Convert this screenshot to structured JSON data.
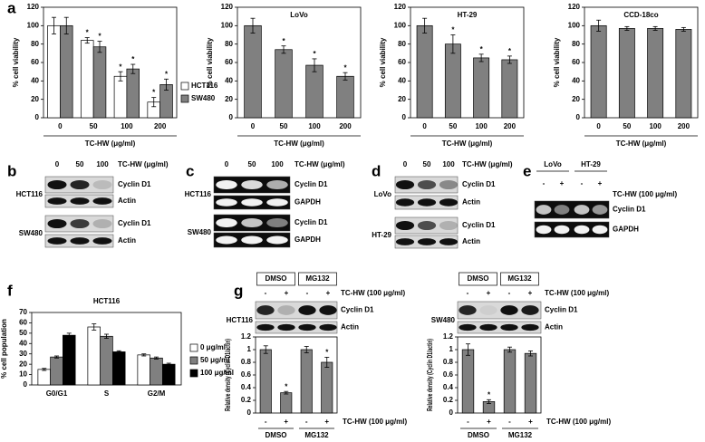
{
  "chart_data": [
    {
      "type": "bar",
      "ylabel": "% cell viability",
      "xlabel": "TC-HW (μg/ml)",
      "categories": [
        "0",
        "50",
        "100",
        "200"
      ],
      "series": [
        {
          "name": "HCT116",
          "color": "#ffffff",
          "values": [
            100,
            84,
            45,
            17
          ],
          "errors": [
            9,
            3,
            5,
            5
          ],
          "stars": [
            null,
            "*",
            "*",
            "*"
          ]
        },
        {
          "name": "SW480",
          "color": "#808080",
          "values": [
            100,
            77,
            53,
            36
          ],
          "errors": [
            9,
            6,
            5,
            6
          ],
          "stars": [
            null,
            "*",
            "*",
            "*"
          ]
        }
      ],
      "ylim": [
        0,
        120
      ],
      "yticks": [
        0,
        20,
        40,
        60,
        80,
        100,
        120
      ]
    },
    {
      "type": "bar",
      "title": "LoVo",
      "ylabel": "% cell viability",
      "xlabel": "TC-HW (μg/ml)",
      "categories": [
        "0",
        "50",
        "100",
        "200"
      ],
      "values": [
        100,
        74,
        57,
        45
      ],
      "errors": [
        8,
        4,
        7,
        4
      ],
      "stars": [
        null,
        "*",
        "*",
        "*"
      ],
      "color": "#808080",
      "ylim": [
        0,
        120
      ],
      "yticks": [
        0,
        20,
        40,
        60,
        80,
        100,
        120
      ]
    },
    {
      "type": "bar",
      "title": "HT-29",
      "ylabel": "% cell viability",
      "xlabel": "TC-HW (μg/ml)",
      "categories": [
        "0",
        "50",
        "100",
        "200"
      ],
      "values": [
        100,
        80,
        65,
        63
      ],
      "errors": [
        8,
        10,
        4,
        4
      ],
      "stars": [
        null,
        "*",
        "*",
        "*"
      ],
      "color": "#808080",
      "ylim": [
        0,
        120
      ],
      "yticks": [
        0,
        20,
        40,
        60,
        80,
        100,
        120
      ]
    },
    {
      "type": "bar",
      "title": "CCD-18co",
      "ylabel": "% cell viability",
      "xlabel": "TC-HW (μg/ml)",
      "categories": [
        "0",
        "50",
        "100",
        "200"
      ],
      "values": [
        100,
        97,
        97,
        96
      ],
      "errors": [
        6,
        2,
        2,
        2
      ],
      "color": "#808080",
      "ylim": [
        0,
        120
      ],
      "yticks": [
        0,
        20,
        40,
        60,
        80,
        100,
        120
      ]
    },
    {
      "type": "bar",
      "title": "HCT116",
      "ylabel": "% cell population",
      "categories": [
        "G0/G1",
        "S",
        "G2/M"
      ],
      "series": [
        {
          "name": "0 μg/ml",
          "color": "#ffffff",
          "values": [
            15,
            56,
            29
          ],
          "errors": [
            1,
            3,
            1
          ]
        },
        {
          "name": "50 μg/ml",
          "color": "#808080",
          "values": [
            27,
            47,
            26
          ],
          "errors": [
            1,
            2,
            1
          ]
        },
        {
          "name": "100 μg/ml",
          "color": "#000000",
          "values": [
            48,
            32,
            20
          ],
          "errors": [
            2,
            1,
            1
          ]
        }
      ],
      "ylim": [
        0,
        70
      ],
      "yticks": [
        0,
        10,
        20,
        30,
        40,
        50,
        60,
        70
      ]
    },
    {
      "type": "bar",
      "ylabel": "Relative density (Cyclin D1/actin)",
      "xlabel": "TC-HW (100 μg/ml)",
      "categories": [
        "-",
        "+",
        "-",
        "+"
      ],
      "groups": [
        "DMSO",
        "MG132"
      ],
      "values": [
        1,
        0.32,
        1,
        0.8
      ],
      "errors": [
        0.06,
        0.02,
        0.05,
        0.08
      ],
      "stars": [
        null,
        "*",
        null,
        "*"
      ],
      "color": "#808080",
      "ylim": [
        0,
        1.2
      ],
      "yticks": [
        0,
        0.2,
        0.4,
        0.6,
        0.8,
        1,
        1.2
      ]
    },
    {
      "type": "bar",
      "ylabel": "Relative density (Cyclin D1/actin)",
      "xlabel": "TC-HW (100 μg/ml)",
      "categories": [
        "-",
        "+",
        "-",
        "+"
      ],
      "groups": [
        "DMSO",
        "MG132"
      ],
      "values": [
        1,
        0.18,
        1,
        0.94
      ],
      "errors": [
        0.09,
        0.03,
        0.04,
        0.04
      ],
      "stars": [
        null,
        "*",
        null,
        null
      ],
      "color": "#808080",
      "ylim": [
        0,
        1.2
      ],
      "yticks": [
        0,
        0.2,
        0.4,
        0.6,
        0.8,
        1,
        1.2
      ]
    }
  ],
  "figure": {
    "letters": [
      "a",
      "b",
      "c",
      "d",
      "e",
      "f",
      "g"
    ],
    "blots": {
      "b": {
        "lanes": [
          "0",
          "50",
          "100"
        ],
        "treatment": "TC-HW (μg/ml)",
        "cells": [
          "HCT116",
          "SW480"
        ],
        "rows": [
          "Cyclin D1",
          "Actin",
          "Cyclin D1",
          "Actin"
        ]
      },
      "c": {
        "lanes": [
          "0",
          "50",
          "100"
        ],
        "treatment": "TC-HW (μg/ml)",
        "cells": [
          "HCT116",
          "SW480"
        ],
        "rows": [
          "Cyclin D1",
          "GAPDH",
          "Cyclin D1",
          "GAPDH"
        ]
      },
      "d": {
        "lanes": [
          "0",
          "50",
          "100"
        ],
        "treatment": "TC-HW (μg/ml)",
        "cells": [
          "LoVo",
          "HT-29"
        ],
        "rows": [
          "Cyclin D1",
          "Actin",
          "Cyclin D1",
          "Actin"
        ]
      },
      "e": {
        "groups": [
          "LoVo",
          "HT-29"
        ],
        "lanes": [
          "-",
          "+",
          "-",
          "+"
        ],
        "treatment": "TC-HW (100 μg/ml)",
        "rows": [
          "Cyclin D1",
          "GAPDH"
        ]
      },
      "g1": {
        "groups": [
          "DMSO",
          "MG132"
        ],
        "lanes": [
          "-",
          "+",
          "-",
          "+"
        ],
        "treatment": "TC-HW (100 μg/ml)",
        "cells": [
          "HCT116"
        ],
        "rows": [
          "Cyclin D1",
          "Actin"
        ]
      },
      "g2": {
        "groups": [
          "DMSO",
          "MG132"
        ],
        "lanes": [
          "-",
          "+",
          "-",
          "+"
        ],
        "treatment": "TC-HW (100 μg/ml)",
        "cells": [
          "SW480"
        ],
        "rows": [
          "Cyclin D1",
          "Actin"
        ]
      }
    }
  }
}
